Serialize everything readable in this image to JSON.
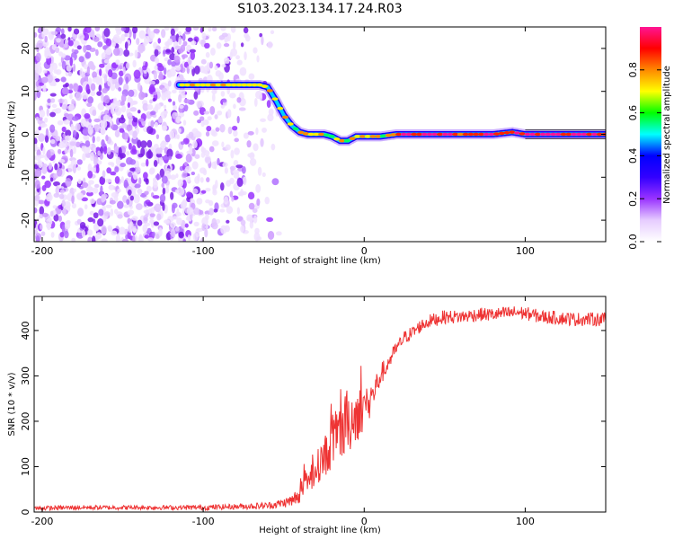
{
  "title": "S103.2023.134.17.24.R03",
  "chart_data": [
    {
      "type": "heatmap",
      "name": "spectrogram",
      "xlabel": "Height of straight line (km)",
      "ylabel": "Frequency (Hz)",
      "xlim": [
        -205,
        150
      ],
      "ylim": [
        -25,
        25
      ],
      "x_ticks": [
        -200,
        -100,
        0,
        100
      ],
      "y_ticks": [
        -20,
        -10,
        0,
        10,
        20
      ],
      "colorbar": {
        "label": "Normalized spectral amplitude",
        "range": [
          0,
          1
        ],
        "ticks": [
          0.0,
          0.2,
          0.4,
          0.6,
          0.8
        ],
        "tick_labels": [
          "0.0",
          "0.2",
          "0.4",
          "0.6",
          "0.8"
        ],
        "colormap": [
          "#ffffff",
          "#e6ccff",
          "#9933ff",
          "#3300ff",
          "#0000ff",
          "#00ffff",
          "#00ff00",
          "#ffff00",
          "#ff8800",
          "#ff0000",
          "#ff1493"
        ]
      },
      "signal_track": {
        "x": [
          -115,
          -100,
          -85,
          -75,
          -65,
          -60,
          -55,
          -50,
          -45,
          -40,
          -35,
          -30,
          -25,
          -20,
          -15,
          -10,
          -5,
          0,
          5,
          10,
          20,
          40,
          60,
          80,
          92,
          100,
          120,
          150
        ],
        "frequency": [
          11.5,
          11.5,
          11.5,
          11.5,
          11.5,
          11,
          8,
          4.5,
          2,
          0.5,
          0,
          0,
          0,
          -0.5,
          -1.5,
          -1.5,
          -0.5,
          -0.5,
          -0.5,
          -0.5,
          0,
          0,
          0,
          0,
          0.5,
          0,
          0,
          0
        ]
      },
      "noise_region": {
        "x_range": [
          -205,
          -58
        ],
        "frequency_range": [
          -25,
          25
        ]
      }
    },
    {
      "type": "line",
      "name": "snr",
      "xlabel": "Height of straight line (km)",
      "ylabel": "SNR (10 * v/v)",
      "xlim": [
        -205,
        150
      ],
      "ylim": [
        0,
        475
      ],
      "x_ticks": [
        -200,
        -100,
        0,
        100
      ],
      "y_ticks": [
        0,
        100,
        200,
        300,
        400
      ],
      "color": "#ee3333",
      "series": [
        {
          "x": [
            -205,
            -180,
            -150,
            -120,
            -100,
            -80,
            -60,
            -50,
            -45,
            -40,
            -35,
            -30,
            -25,
            -20,
            -15,
            -10,
            -5,
            0,
            5,
            10,
            15,
            20,
            25,
            30,
            35,
            40,
            45,
            50,
            60,
            70,
            80,
            90,
            95,
            100,
            110,
            120,
            130,
            140,
            150
          ],
          "y": [
            8,
            10,
            10,
            10,
            10,
            12,
            14,
            20,
            25,
            40,
            65,
            95,
            120,
            150,
            175,
            200,
            215,
            235,
            255,
            300,
            330,
            360,
            385,
            395,
            410,
            420,
            425,
            430,
            430,
            435,
            435,
            438,
            440,
            438,
            430,
            428,
            425,
            425,
            425
          ],
          "noise_amplitude": [
            5,
            5,
            5,
            5,
            6,
            6,
            8,
            10,
            15,
            20,
            30,
            35,
            45,
            55,
            70,
            75,
            60,
            45,
            35,
            25,
            20,
            15,
            15,
            15,
            15,
            15,
            15,
            15,
            15,
            15,
            15,
            15,
            15,
            15,
            15,
            15,
            15,
            15,
            15
          ]
        }
      ]
    }
  ]
}
